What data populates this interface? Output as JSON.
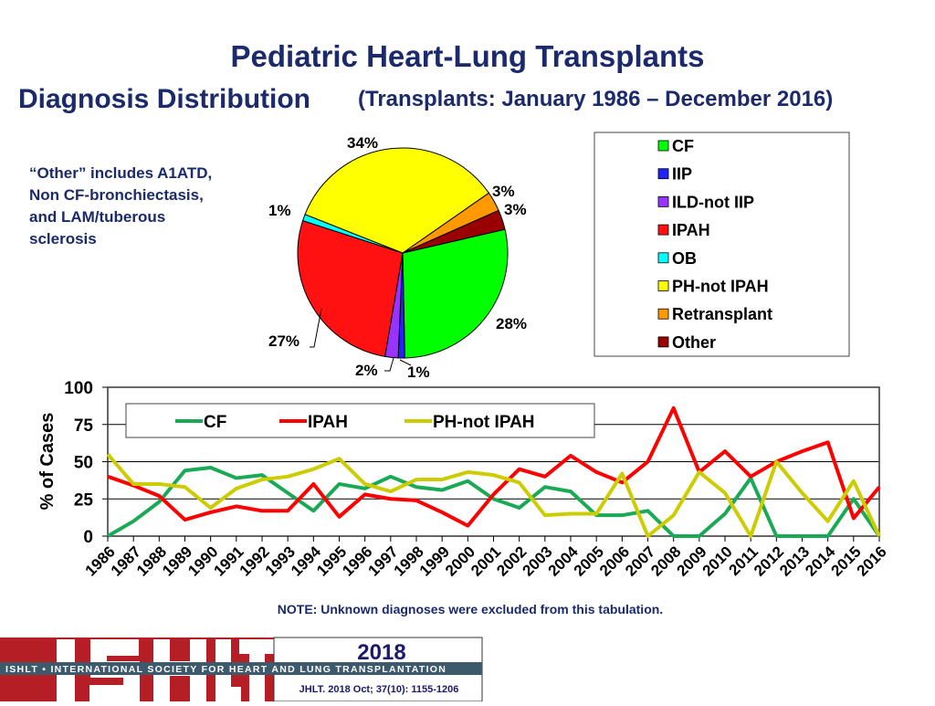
{
  "title": "Pediatric Heart-Lung Transplants",
  "subtitle_main": "Diagnosis Distribution",
  "subtitle_range": "(Transplants: January 1986 – December 2016)",
  "note_other": [
    "“Other” includes A1ATD,",
    "Non CF-bronchiectasis,",
    "and LAM/tuberous",
    "sclerosis"
  ],
  "note_bottom": "NOTE: Unknown diagnoses were excluded from this tabulation.",
  "footer": {
    "logo": "ISHLT",
    "banner": "ISHLT • INTERNATIONAL SOCIETY FOR HEART AND LUNG TRANSPLANTATION",
    "year": "2018",
    "citation": "JHLT. 2018 Oct; 37(10): 1155-1206"
  },
  "chart_data": [
    {
      "type": "pie",
      "slices": [
        {
          "name": "CF",
          "value": 28,
          "label": "28%",
          "color": "#00ff00"
        },
        {
          "name": "IIP",
          "value": 1,
          "label": "1%",
          "color": "#2222ff"
        },
        {
          "name": "ILD-not IIP",
          "value": 2,
          "label": "2%",
          "color": "#9933ff"
        },
        {
          "name": "IPAH",
          "value": 27,
          "label": "27%",
          "color": "#ff1111"
        },
        {
          "name": "OB",
          "value": 1,
          "label": "1%",
          "color": "#00ffff"
        },
        {
          "name": "PH-not IPAH",
          "value": 34,
          "label": "34%",
          "color": "#ffff00"
        },
        {
          "name": "Retransplant",
          "value": 3,
          "label": "3%",
          "color": "#ff9900"
        },
        {
          "name": "Other",
          "value": 3,
          "label": "3%",
          "color": "#990000"
        }
      ],
      "legend_placement": "right"
    },
    {
      "type": "line",
      "ylabel": "% of Cases",
      "ylim": [
        0,
        100
      ],
      "yticks": [
        "0",
        "25",
        "50",
        "75",
        "100"
      ],
      "grid": true,
      "legend_placement": "top-left",
      "x": [
        "1986",
        "1987",
        "1988",
        "1989",
        "1990",
        "1991",
        "1992",
        "1993",
        "1994",
        "1995",
        "1996",
        "1997",
        "1998",
        "1999",
        "2000",
        "2001",
        "2002",
        "2003",
        "2004",
        "2005",
        "2006",
        "2007",
        "2008",
        "2009",
        "2010",
        "2011",
        "2012",
        "2013",
        "2014",
        "2015",
        "2016"
      ],
      "series": [
        {
          "name": "CF",
          "color": "#1aaa55",
          "values": [
            0,
            10,
            23,
            44,
            46,
            39,
            41,
            29,
            17,
            35,
            32,
            40,
            33,
            31,
            37,
            25,
            19,
            33,
            30,
            14,
            14,
            17,
            0,
            0,
            15,
            39,
            0,
            0,
            0,
            25,
            0
          ]
        },
        {
          "name": "IPAH",
          "color": "#ff0000",
          "values": [
            40,
            34,
            27,
            11,
            16,
            20,
            17,
            17,
            35,
            13,
            28,
            25,
            24,
            16,
            7,
            28,
            45,
            40,
            54,
            43,
            36,
            50,
            86,
            43,
            57,
            40,
            50,
            57,
            63,
            12,
            33
          ]
        },
        {
          "name": "PH-not IPAH",
          "color": "#cccc00",
          "values": [
            55,
            35,
            35,
            33,
            19,
            32,
            38,
            40,
            45,
            52,
            35,
            30,
            38,
            38,
            43,
            41,
            36,
            14,
            15,
            15,
            42,
            0,
            14,
            43,
            29,
            0,
            50,
            29,
            10,
            37,
            0
          ]
        }
      ]
    }
  ]
}
